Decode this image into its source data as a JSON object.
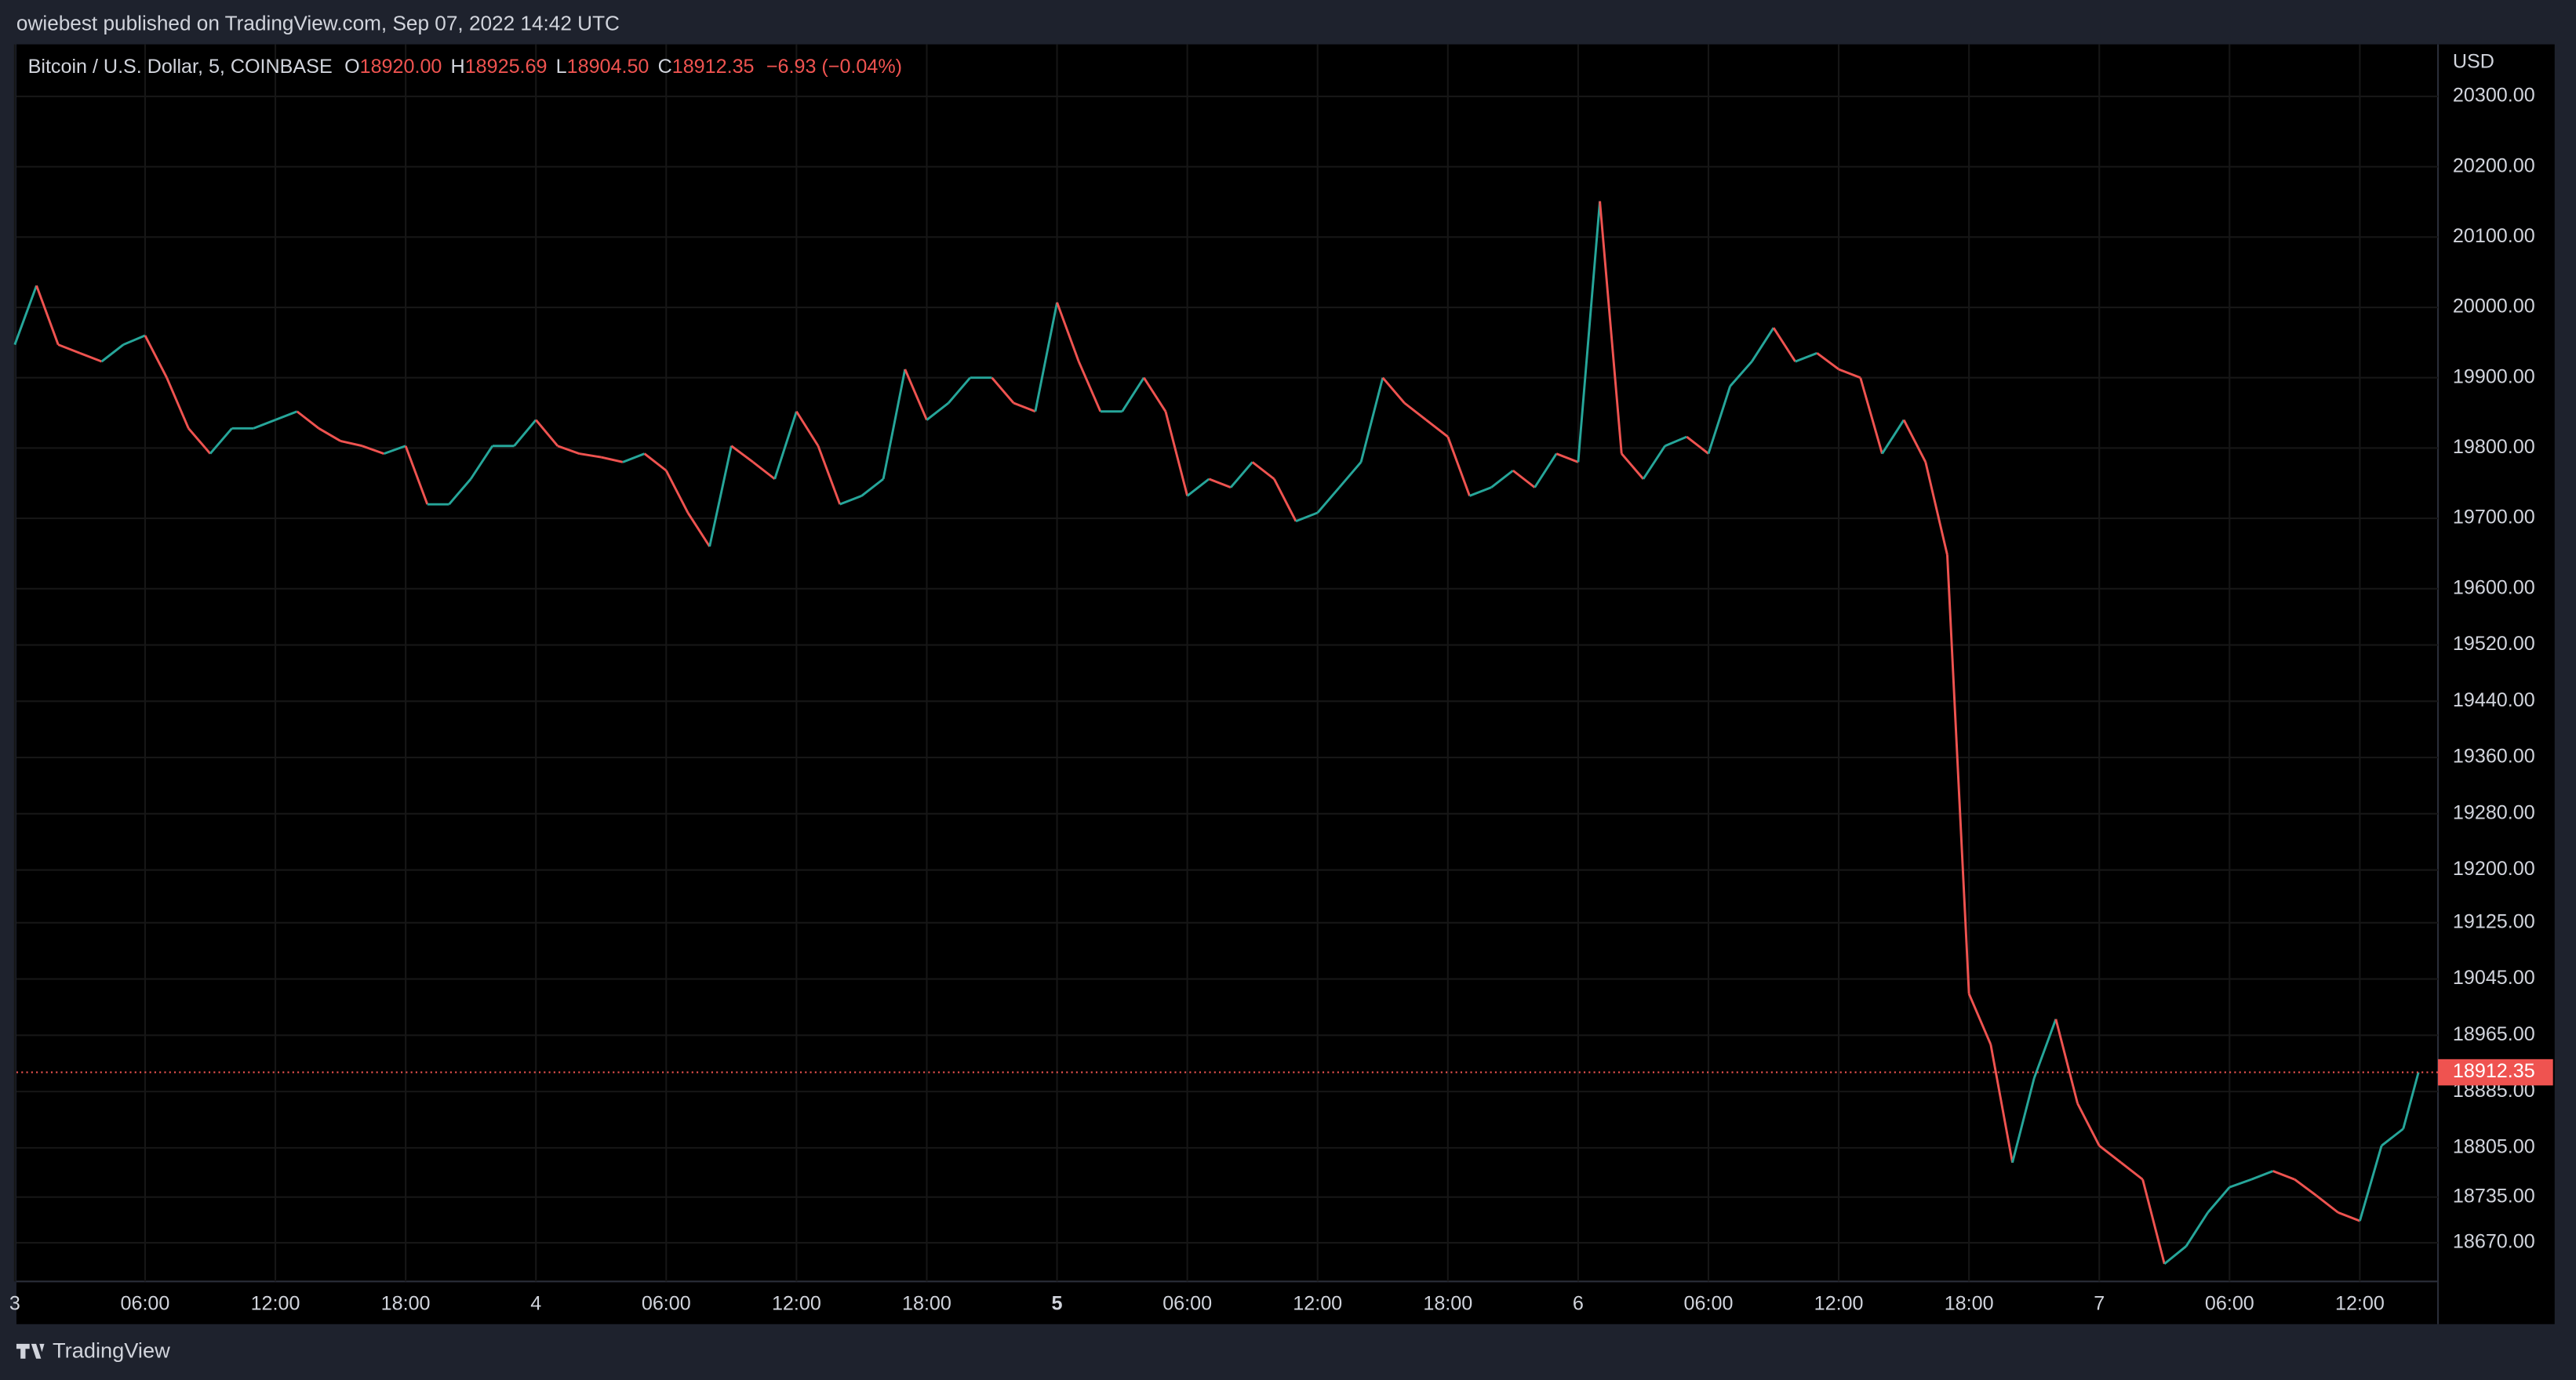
{
  "header": {
    "text": "owiebest published on TradingView.com, Sep 07, 2022 14:42 UTC"
  },
  "footer": {
    "brand": "TradingView"
  },
  "chart_data": {
    "type": "line",
    "title": "Bitcoin / U.S. Dollar, 5, COINBASE",
    "ohlc": {
      "o_label": "O",
      "o": "18920.00",
      "h_label": "H",
      "h": "18925.69",
      "l_label": "L",
      "l": "18904.50",
      "c_label": "C",
      "c": "18912.35",
      "change": "−6.93 (−0.04%)"
    },
    "currency": "USD",
    "up_color": "#26a69a",
    "down_color": "#ef5350",
    "grid": true,
    "x": [
      0,
      1,
      2,
      3,
      4,
      5,
      6,
      7,
      8,
      9,
      10,
      11,
      12,
      13,
      14,
      15,
      16,
      17,
      18,
      19,
      20,
      21,
      22,
      23,
      24,
      25,
      26,
      27,
      28,
      29,
      30,
      31,
      32,
      33,
      34,
      35,
      36,
      37,
      38,
      39,
      40,
      41,
      42,
      43,
      44,
      45,
      46,
      47,
      48,
      49,
      50,
      51,
      52,
      53,
      54,
      55,
      56,
      57,
      58,
      59,
      60,
      61,
      62,
      63,
      64,
      65,
      66,
      67,
      68,
      69,
      70,
      71,
      72,
      73,
      74,
      75,
      76,
      77,
      78,
      79,
      80,
      81,
      82,
      83,
      84,
      85,
      86,
      87,
      88,
      89,
      90,
      91,
      92,
      93,
      94,
      95,
      96,
      97,
      98,
      99,
      100,
      101,
      102,
      103,
      104,
      105,
      106,
      107,
      108,
      109,
      110,
      110.7
    ],
    "series": [
      {
        "name": "BTCUSD",
        "values": [
          19947,
          20031,
          19947,
          19935,
          19923,
          19947,
          19960,
          19900,
          19828,
          19792,
          19828,
          19828,
          19840,
          19852,
          19828,
          19810,
          19803,
          19792,
          19803,
          19720,
          19720,
          19756,
          19803,
          19803,
          19840,
          19803,
          19792,
          19787,
          19780,
          19792,
          19768,
          19708,
          19660,
          19803,
          19780,
          19756,
          19852,
          19803,
          19720,
          19732,
          19756,
          19912,
          19840,
          19864,
          19900,
          19900,
          19864,
          19852,
          20007,
          19923,
          19852,
          19852,
          19900,
          19852,
          19732,
          19756,
          19744,
          19780,
          19756,
          19696,
          19708,
          19744,
          19780,
          19900,
          19864,
          19840,
          19816,
          19732,
          19744,
          19768,
          19744,
          19792,
          19780,
          20151,
          19792,
          19756,
          19803,
          19816,
          19792,
          19888,
          19923,
          19971,
          19923,
          19935,
          19912,
          19900,
          19792,
          19840,
          19780,
          19648,
          19024,
          18952,
          18784,
          18904,
          18988,
          18868,
          18808,
          18784,
          18760,
          18640,
          18665,
          18713,
          18749,
          18760,
          18772,
          18760,
          18737,
          18713,
          18701,
          18808,
          18832,
          18912.35
        ]
      }
    ],
    "last_price": {
      "value": 18912.35,
      "label": "18912.35"
    },
    "xlim": [
      0,
      111.6
    ],
    "xticks": [
      {
        "value": 0,
        "label": "3"
      },
      {
        "value": 6,
        "label": "06:00"
      },
      {
        "value": 12,
        "label": "12:00"
      },
      {
        "value": 18,
        "label": "18:00"
      },
      {
        "value": 24,
        "label": "4"
      },
      {
        "value": 30,
        "label": "06:00"
      },
      {
        "value": 36,
        "label": "12:00"
      },
      {
        "value": 42,
        "label": "18:00"
      },
      {
        "value": 48,
        "label": "5"
      },
      {
        "value": 54,
        "label": "06:00"
      },
      {
        "value": 60,
        "label": "12:00"
      },
      {
        "value": 66,
        "label": "18:00"
      },
      {
        "value": 72,
        "label": "6"
      },
      {
        "value": 78,
        "label": "06:00"
      },
      {
        "value": 84,
        "label": "12:00"
      },
      {
        "value": 90,
        "label": "18:00"
      },
      {
        "value": 96,
        "label": "7"
      },
      {
        "value": 102,
        "label": "06:00"
      },
      {
        "value": 108,
        "label": "12:00"
      }
    ],
    "ylim": [
      18615,
      20374
    ],
    "yticks": [
      {
        "value": 18670,
        "label": "18670.00"
      },
      {
        "value": 18735,
        "label": "18735.00"
      },
      {
        "value": 18805,
        "label": "18805.00"
      },
      {
        "value": 18885,
        "label": "18885.00"
      },
      {
        "value": 18965,
        "label": "18965.00"
      },
      {
        "value": 19045,
        "label": "19045.00"
      },
      {
        "value": 19125,
        "label": "19125.00"
      },
      {
        "value": 19200,
        "label": "19200.00"
      },
      {
        "value": 19280,
        "label": "19280.00"
      },
      {
        "value": 19360,
        "label": "19360.00"
      },
      {
        "value": 19440,
        "label": "19440.00"
      },
      {
        "value": 19520,
        "label": "19520.00"
      },
      {
        "value": 19600,
        "label": "19600.00"
      },
      {
        "value": 19700,
        "label": "19700.00"
      },
      {
        "value": 19800,
        "label": "19800.00"
      },
      {
        "value": 19900,
        "label": "19900.00"
      },
      {
        "value": 20000,
        "label": "20000.00"
      },
      {
        "value": 20100,
        "label": "20100.00"
      },
      {
        "value": 20200,
        "label": "20200.00"
      },
      {
        "value": 20300,
        "label": "20300.00"
      }
    ]
  }
}
